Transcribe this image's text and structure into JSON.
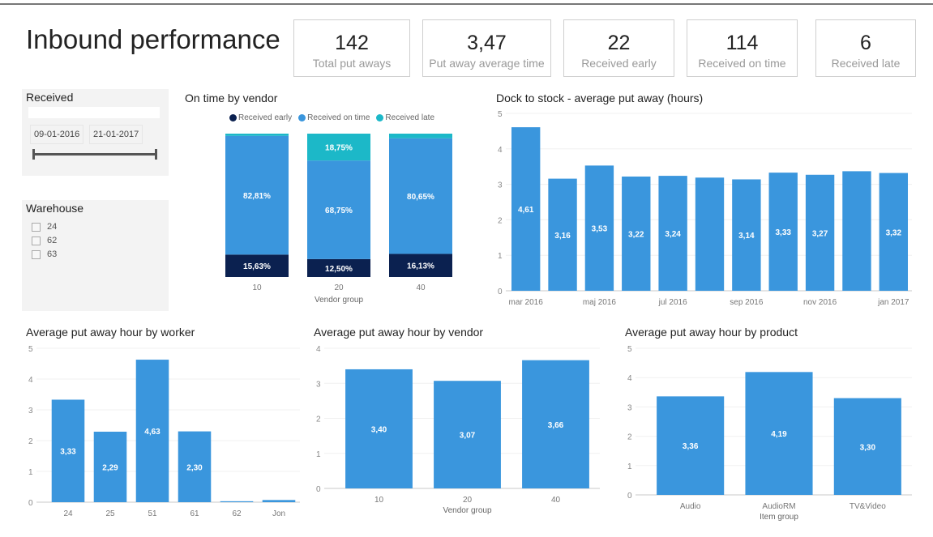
{
  "page_title": "Inbound performance",
  "kpis": [
    {
      "value": "142",
      "label": "Total put aways"
    },
    {
      "value": "3,47",
      "label": "Put away average time"
    },
    {
      "value": "22",
      "label": "Received early"
    },
    {
      "value": "114",
      "label": "Received on time"
    },
    {
      "value": "6",
      "label": "Received late"
    }
  ],
  "received_slicer": {
    "title": "Received",
    "start": "09-01-2016",
    "end": "21-01-2017"
  },
  "warehouse_slicer": {
    "title": "Warehouse",
    "options": [
      "24",
      "62",
      "63"
    ]
  },
  "colors": {
    "bar": "#3a96dd",
    "early": "#0b2150",
    "on_time": "#3a96dd",
    "late": "#1cb8c8"
  },
  "chart_data": [
    {
      "type": "bar",
      "stacked": true,
      "title": "On time by vendor",
      "xlabel": "Vendor group",
      "categories": [
        "10",
        "20",
        "40"
      ],
      "legend": [
        "Received early",
        "Received on time",
        "Received late"
      ],
      "series": [
        {
          "name": "Received early",
          "values": [
            15.63,
            12.5,
            16.13
          ],
          "labels": [
            "15,63%",
            "12,50%",
            "16,13%"
          ]
        },
        {
          "name": "Received on time",
          "values": [
            82.81,
            68.75,
            80.65
          ],
          "labels": [
            "82,81%",
            "68,75%",
            "80,65%"
          ]
        },
        {
          "name": "Received late",
          "values": [
            1.56,
            18.75,
            3.22
          ],
          "labels": [
            "",
            "18,75%",
            ""
          ]
        }
      ],
      "ylim": [
        0,
        100
      ]
    },
    {
      "type": "bar",
      "title": "Dock to stock - average put away (hours)",
      "categories": [
        "mar 2016",
        "apr 2016",
        "maj 2016",
        "jun 2016",
        "jul 2016",
        "aug 2016",
        "sep 2016",
        "okt 2016",
        "nov 2016",
        "dec 2016",
        "jan 2017"
      ],
      "tick_labels": [
        "mar 2016",
        "",
        "maj 2016",
        "",
        "jul 2016",
        "",
        "sep 2016",
        "",
        "nov 2016",
        "",
        "jan 2017"
      ],
      "values": [
        4.61,
        3.16,
        3.53,
        3.22,
        3.24,
        3.19,
        3.14,
        3.33,
        3.27,
        3.37,
        3.32
      ],
      "labels": [
        "4,61",
        "3,16",
        "3,53",
        "3,22",
        "3,24",
        "",
        "3,14",
        "3,33",
        "3,27",
        "",
        "3,32"
      ],
      "yticks": [
        "0",
        "1",
        "2",
        "3",
        "4",
        "5"
      ],
      "ylim": [
        0,
        5
      ]
    },
    {
      "type": "bar",
      "title": "Average put away hour by worker",
      "categories": [
        "24",
        "25",
        "51",
        "61",
        "62",
        "Jon"
      ],
      "values": [
        3.33,
        2.29,
        4.63,
        2.3,
        0.03,
        0.07
      ],
      "labels": [
        "3,33",
        "2,29",
        "4,63",
        "2,30",
        "",
        ""
      ],
      "yticks": [
        "0",
        "1",
        "2",
        "3",
        "4",
        "5"
      ],
      "ylim": [
        0,
        5
      ]
    },
    {
      "type": "bar",
      "title": "Average put away hour by vendor",
      "xlabel": "Vendor group",
      "categories": [
        "10",
        "20",
        "40"
      ],
      "values": [
        3.4,
        3.07,
        3.66
      ],
      "labels": [
        "3,40",
        "3,07",
        "3,66"
      ],
      "yticks": [
        "0",
        "1",
        "2",
        "3",
        "4"
      ],
      "ylim": [
        0,
        4
      ]
    },
    {
      "type": "bar",
      "title": "Average put away hour by product",
      "xlabel": "Item group",
      "categories": [
        "Audio",
        "AudioRM",
        "TV&Video"
      ],
      "values": [
        3.36,
        4.19,
        3.3
      ],
      "labels": [
        "3,36",
        "4,19",
        "3,30"
      ],
      "yticks": [
        "0",
        "1",
        "2",
        "3",
        "4",
        "5"
      ],
      "ylim": [
        0,
        5
      ]
    }
  ]
}
